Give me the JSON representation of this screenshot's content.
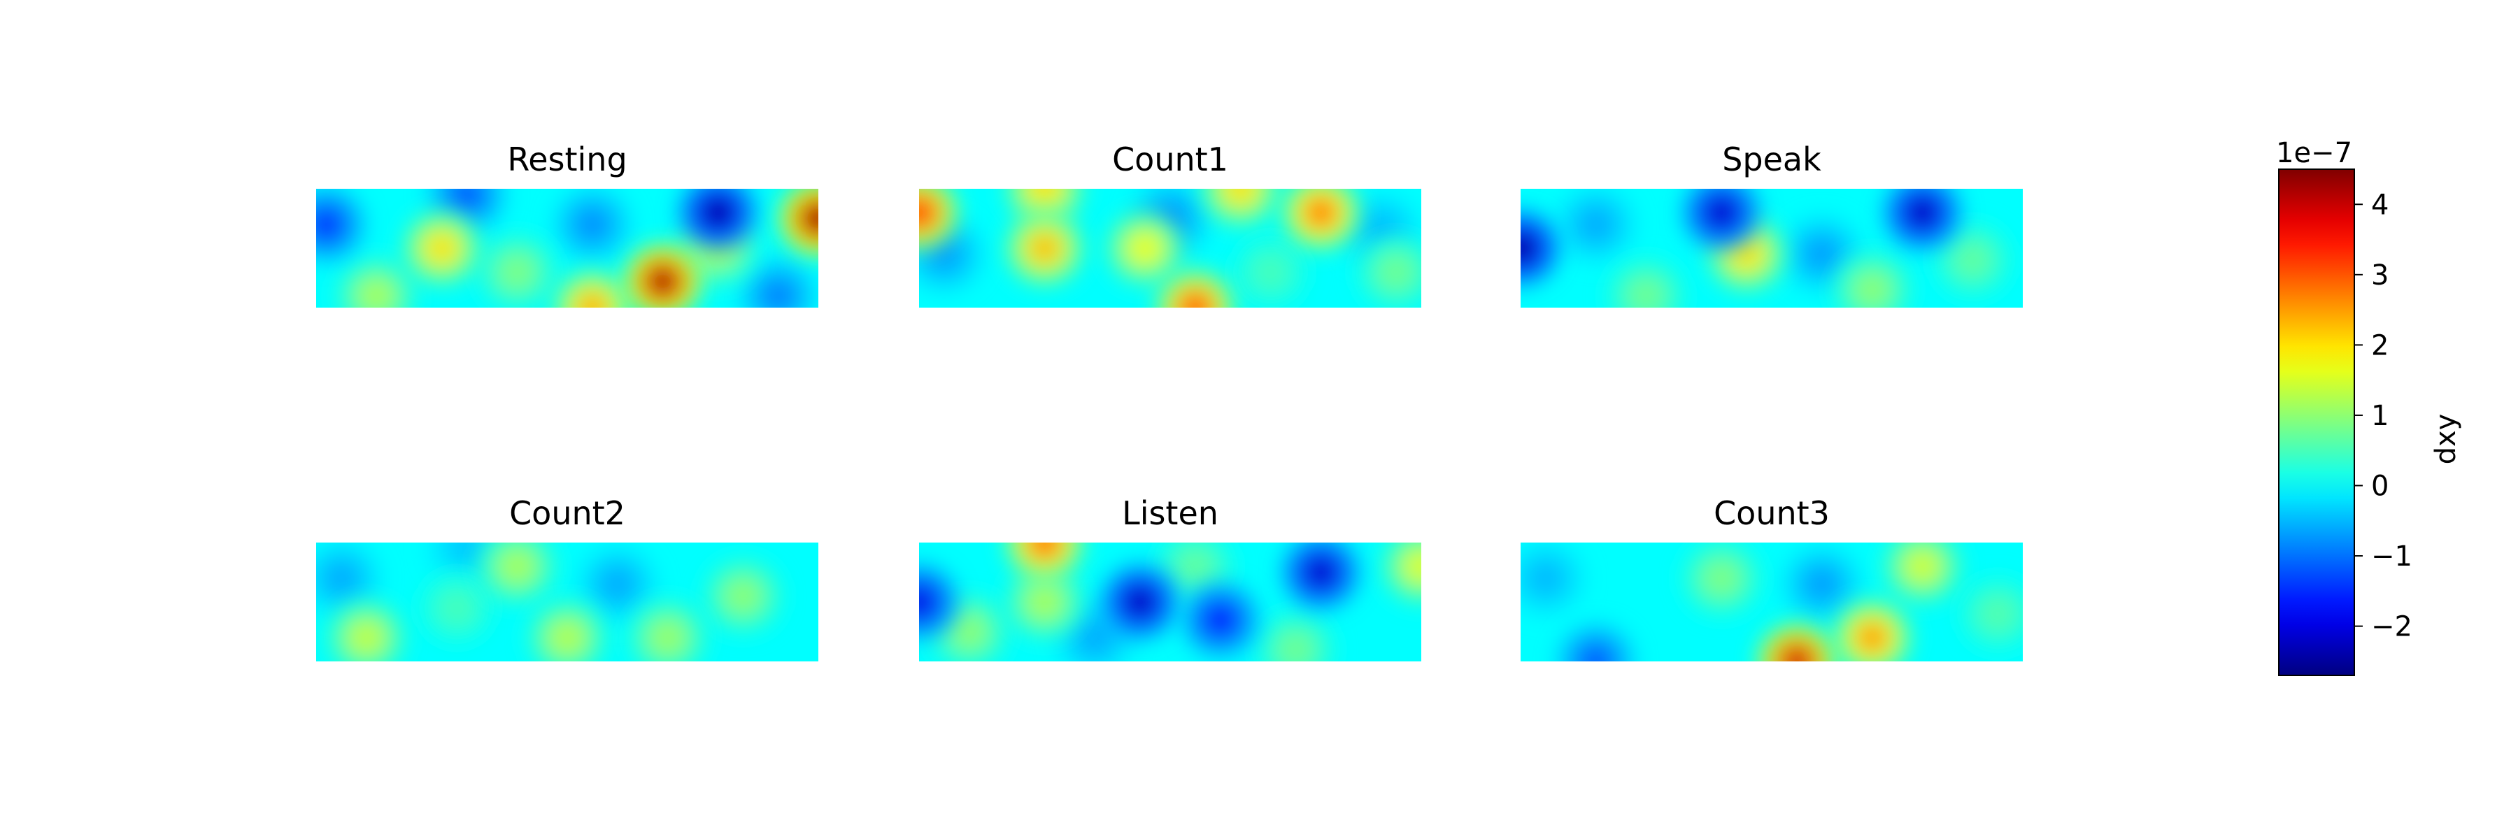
{
  "chart_data": {
    "type": "heatmap",
    "colormap": "jet",
    "vmin": -2.7,
    "vmax": 4.5,
    "panels": [
      {
        "title": "Resting",
        "blobs": [
          {
            "x": 0.25,
            "y": 0.5,
            "v": 2.0
          },
          {
            "x": 0.69,
            "y": 0.78,
            "v": 4.3
          },
          {
            "x": 0.55,
            "y": 1.0,
            "v": 2.4
          },
          {
            "x": 0.8,
            "y": 0.5,
            "v": 1.2
          },
          {
            "x": 1.0,
            "y": 0.25,
            "v": 4.5
          },
          {
            "x": 0.8,
            "y": 0.2,
            "v": -2.5
          },
          {
            "x": 0.02,
            "y": 0.3,
            "v": -1.5
          },
          {
            "x": 0.12,
            "y": 0.9,
            "v": 1.2
          },
          {
            "x": 0.4,
            "y": 0.7,
            "v": 0.9
          },
          {
            "x": 0.3,
            "y": 0.05,
            "v": -1.2
          },
          {
            "x": 0.55,
            "y": 0.3,
            "v": -0.8
          },
          {
            "x": 0.92,
            "y": 0.9,
            "v": -0.9
          }
        ]
      },
      {
        "title": "Count1",
        "blobs": [
          {
            "x": 0.0,
            "y": 0.2,
            "v": 3.5
          },
          {
            "x": 0.25,
            "y": 0.5,
            "v": 2.3
          },
          {
            "x": 0.45,
            "y": 0.5,
            "v": 1.7
          },
          {
            "x": 0.55,
            "y": 1.0,
            "v": 3.2
          },
          {
            "x": 0.8,
            "y": 0.2,
            "v": 2.9
          },
          {
            "x": 0.64,
            "y": 0.0,
            "v": 2.0
          },
          {
            "x": 0.25,
            "y": 0.0,
            "v": 2.0
          },
          {
            "x": 0.5,
            "y": 0.25,
            "v": -0.8
          },
          {
            "x": 0.05,
            "y": 0.55,
            "v": -0.7
          },
          {
            "x": 0.95,
            "y": 0.7,
            "v": 0.8
          },
          {
            "x": 0.7,
            "y": 0.7,
            "v": 0.5
          },
          {
            "x": 0.92,
            "y": 0.35,
            "v": -0.5
          }
        ]
      },
      {
        "title": "Speak",
        "blobs": [
          {
            "x": 0.0,
            "y": 0.5,
            "v": -2.6
          },
          {
            "x": 0.4,
            "y": 0.2,
            "v": -2.2
          },
          {
            "x": 0.8,
            "y": 0.2,
            "v": -2.3
          },
          {
            "x": 0.45,
            "y": 0.55,
            "v": 2.0
          },
          {
            "x": 0.7,
            "y": 0.85,
            "v": 1.0
          },
          {
            "x": 0.25,
            "y": 0.9,
            "v": 0.8
          },
          {
            "x": 0.9,
            "y": 0.6,
            "v": 0.7
          },
          {
            "x": 0.6,
            "y": 0.55,
            "v": -0.7
          },
          {
            "x": 0.15,
            "y": 0.3,
            "v": -0.6
          }
        ]
      },
      {
        "title": "Count2",
        "blobs": [
          {
            "x": 0.1,
            "y": 0.8,
            "v": 1.4
          },
          {
            "x": 0.4,
            "y": 0.2,
            "v": 1.2
          },
          {
            "x": 0.5,
            "y": 0.8,
            "v": 1.3
          },
          {
            "x": 0.7,
            "y": 0.8,
            "v": 1.1
          },
          {
            "x": 0.85,
            "y": 0.45,
            "v": 1.0
          },
          {
            "x": 0.28,
            "y": 0.55,
            "v": 0.5
          },
          {
            "x": 0.05,
            "y": 0.3,
            "v": -0.6
          },
          {
            "x": 0.6,
            "y": 0.35,
            "v": -0.6
          },
          {
            "x": 0.3,
            "y": 0.05,
            "v": -0.4
          }
        ]
      },
      {
        "title": "Listen",
        "blobs": [
          {
            "x": 0.25,
            "y": 0.0,
            "v": 3.0
          },
          {
            "x": 0.0,
            "y": 0.5,
            "v": -2.0
          },
          {
            "x": 0.44,
            "y": 0.5,
            "v": -2.3
          },
          {
            "x": 0.6,
            "y": 0.65,
            "v": -1.7
          },
          {
            "x": 0.8,
            "y": 0.25,
            "v": -2.2
          },
          {
            "x": 0.25,
            "y": 0.5,
            "v": 1.2
          },
          {
            "x": 0.1,
            "y": 0.75,
            "v": 1.0
          },
          {
            "x": 1.0,
            "y": 0.2,
            "v": 1.6
          },
          {
            "x": 0.75,
            "y": 0.9,
            "v": 0.8
          },
          {
            "x": 0.55,
            "y": 0.2,
            "v": 0.7
          },
          {
            "x": 0.35,
            "y": 0.8,
            "v": -0.6
          }
        ]
      },
      {
        "title": "Count3",
        "blobs": [
          {
            "x": 0.55,
            "y": 1.0,
            "v": 4.0
          },
          {
            "x": 0.7,
            "y": 0.8,
            "v": 2.6
          },
          {
            "x": 0.8,
            "y": 0.2,
            "v": 1.5
          },
          {
            "x": 0.4,
            "y": 0.3,
            "v": 0.9
          },
          {
            "x": 0.15,
            "y": 1.0,
            "v": -1.2
          },
          {
            "x": 0.95,
            "y": 0.6,
            "v": 0.6
          },
          {
            "x": 0.6,
            "y": 0.35,
            "v": -0.7
          },
          {
            "x": 0.05,
            "y": 0.3,
            "v": -0.5
          }
        ]
      }
    ],
    "colorbar": {
      "label": "dxy",
      "scale_label": "1e−7",
      "ticks": [
        4,
        3,
        2,
        1,
        0,
        -1,
        -2
      ],
      "tick_labels": [
        "4",
        "3",
        "2",
        "1",
        "0",
        "−1",
        "−2"
      ]
    }
  }
}
